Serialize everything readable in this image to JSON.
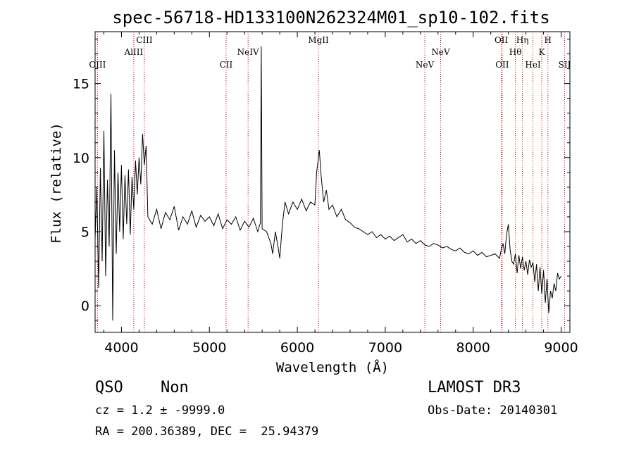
{
  "chart_data": {
    "type": "line",
    "title": "spec-56718-HD133100N262324M01_sp10-102.fits",
    "xlabel": "Wavelength (Å)",
    "ylabel": "Flux (relative)",
    "xlim": [
      3700,
      9100
    ],
    "ylim": [
      -1.8,
      18.5
    ],
    "xticks": [
      4000,
      5000,
      6000,
      7000,
      8000,
      9000
    ],
    "yticks": [
      0,
      5,
      10,
      15
    ],
    "line_color": "#000000",
    "marker_color": "#cc0000",
    "series": [
      {
        "x": [
          3700,
          3720,
          3740,
          3760,
          3780,
          3800,
          3820,
          3840,
          3860,
          3880,
          3900,
          3920,
          3940,
          3960,
          3980,
          4000,
          4020,
          4040,
          4060,
          4080,
          4100,
          4120,
          4140,
          4160,
          4180,
          4200,
          4220,
          4240,
          4260,
          4280,
          4300,
          4350,
          4400,
          4450,
          4500,
          4550,
          4600,
          4650,
          4700,
          4750,
          4800,
          4850,
          4900,
          4950,
          5000,
          5050,
          5100,
          5150,
          5200,
          5250,
          5300,
          5350,
          5400,
          5450,
          5500,
          5550,
          5580,
          5590,
          5600,
          5650,
          5700,
          5720,
          5750,
          5780,
          5800,
          5830,
          5860,
          5900,
          5950,
          6000,
          6050,
          6100,
          6150,
          6200,
          6220,
          6250,
          6270,
          6300,
          6330,
          6360,
          6400,
          6450,
          6500,
          6550,
          6600,
          6650,
          6700,
          6750,
          6800,
          6850,
          6900,
          6950,
          7000,
          7050,
          7100,
          7150,
          7200,
          7250,
          7300,
          7350,
          7400,
          7450,
          7500,
          7550,
          7600,
          7650,
          7700,
          7750,
          7800,
          7850,
          7900,
          7950,
          8000,
          8050,
          8100,
          8150,
          8200,
          8250,
          8300,
          8320,
          8340,
          8360,
          8380,
          8400,
          8420,
          8440,
          8460,
          8480,
          8500,
          8520,
          8540,
          8560,
          8580,
          8600,
          8620,
          8640,
          8660,
          8680,
          8700,
          8720,
          8740,
          8760,
          8780,
          8800,
          8820,
          8840,
          8860,
          8880,
          8900,
          8920,
          8940,
          8960,
          8980,
          9000
        ],
        "values": [
          4.5,
          8.0,
          1.2,
          9.3,
          3.0,
          11.8,
          2.0,
          8.5,
          4.0,
          14.3,
          -1.0,
          10.5,
          3.5,
          9.0,
          5.0,
          9.5,
          4.5,
          8.8,
          5.5,
          9.2,
          4.8,
          8.7,
          6.5,
          9.8,
          7.5,
          10.0,
          8.2,
          11.6,
          9.5,
          10.8,
          6.0,
          5.5,
          6.5,
          5.2,
          6.3,
          5.8,
          6.7,
          5.1,
          6.0,
          5.5,
          6.4,
          5.3,
          6.1,
          5.7,
          6.0,
          5.4,
          6.2,
          5.2,
          5.8,
          5.5,
          6.0,
          5.1,
          5.7,
          5.3,
          5.9,
          5.0,
          5.6,
          17.5,
          5.2,
          5.0,
          4.2,
          3.5,
          5.0,
          4.0,
          3.2,
          5.5,
          7.0,
          6.2,
          7.0,
          6.5,
          7.2,
          6.4,
          7.0,
          6.8,
          9.0,
          10.5,
          8.8,
          7.0,
          7.8,
          6.5,
          6.8,
          6.0,
          6.5,
          5.8,
          5.6,
          5.3,
          5.2,
          5.0,
          4.8,
          5.0,
          4.6,
          4.8,
          4.5,
          4.7,
          4.4,
          4.6,
          4.8,
          4.3,
          4.5,
          4.2,
          4.4,
          4.1,
          4.0,
          4.2,
          4.1,
          3.9,
          4.0,
          3.8,
          3.7,
          3.9,
          3.6,
          3.5,
          3.7,
          3.4,
          3.6,
          3.3,
          3.4,
          3.5,
          3.2,
          3.8,
          4.2,
          3.5,
          4.8,
          5.5,
          3.8,
          3.0,
          2.8,
          3.5,
          2.2,
          3.4,
          2.5,
          3.3,
          2.4,
          3.0,
          2.1,
          3.1,
          2.6,
          2.9,
          1.6,
          2.8,
          1.0,
          2.6,
          0.8,
          2.4,
          0.2,
          1.8,
          -0.5,
          1.0,
          0.5,
          1.5,
          1.0,
          2.2,
          1.8,
          2.0
        ]
      }
    ],
    "line_markers": [
      {
        "label": "OIII",
        "x": 3727,
        "row": 3
      },
      {
        "label": "AlIII",
        "x": 4140,
        "row": 1
      },
      {
        "label": "CIII",
        "x": 4260,
        "row": 0
      },
      {
        "label": "CII",
        "x": 5190,
        "row": 3
      },
      {
        "label": "NeIV",
        "x": 5440,
        "row": 1
      },
      {
        "label": "MgII",
        "x": 6240,
        "row": 0
      },
      {
        "label": "NeV",
        "x": 7450,
        "row": 3
      },
      {
        "label": "NeV",
        "x": 7630,
        "row": 1
      },
      {
        "label": "OII",
        "x": 8320,
        "row": 0
      },
      {
        "label": "OII",
        "x": 8330,
        "row": 3
      },
      {
        "label": "Hθ",
        "x": 8480,
        "row": 1
      },
      {
        "label": "Hη",
        "x": 8560,
        "row": 0
      },
      {
        "label": "HeI",
        "x": 8680,
        "row": 3
      },
      {
        "label": "K",
        "x": 8780,
        "row": 1
      },
      {
        "label": "H",
        "x": 8850,
        "row": 0
      },
      {
        "label": "SII",
        "x": 9040,
        "row": 3
      }
    ]
  },
  "info": {
    "class": "QSO",
    "subclass": "Non",
    "survey": "LAMOST DR3",
    "cz": "cz = 1.2 ± -9999.0",
    "obs_date": "Obs-Date: 20140301",
    "coords": "RA = 200.36389, DEC =  25.94379"
  }
}
